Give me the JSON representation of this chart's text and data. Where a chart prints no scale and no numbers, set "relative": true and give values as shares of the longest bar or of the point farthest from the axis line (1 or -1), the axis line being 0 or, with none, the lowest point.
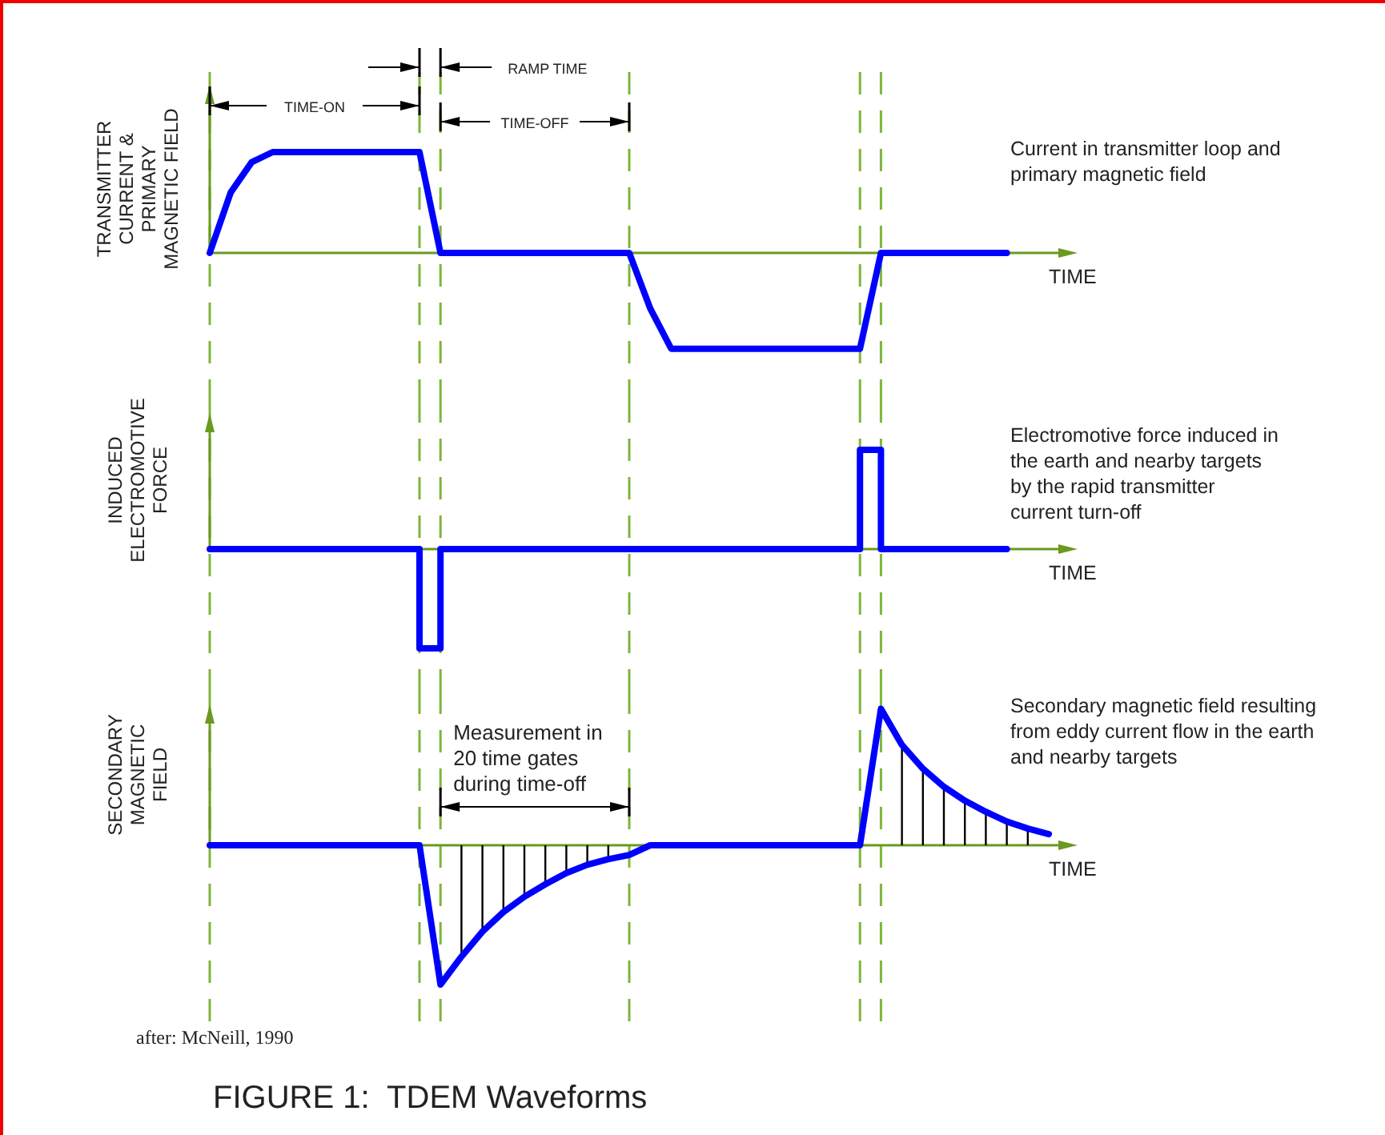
{
  "chart_data": [
    {
      "type": "line",
      "ylabel": "TRANSMITTER\nCURRENT &\nPRIMARY\nMAGNETIC FIELD",
      "xlabel": "TIME",
      "relative": true,
      "grid": "x",
      "ref_lines": [
        {
          "axis": "y",
          "value": 0,
          "color": "#6a9a1f"
        }
      ],
      "categories": [
        null,
        null,
        null,
        null,
        null,
        null,
        null,
        null,
        null,
        null,
        null,
        null,
        null,
        null,
        null,
        null,
        null,
        null,
        null,
        null,
        null,
        null,
        null,
        null,
        null,
        null,
        null,
        null,
        null,
        null,
        null,
        null,
        null,
        null,
        null,
        null,
        null,
        null,
        null,
        null,
        null
      ],
      "series": [
        {
          "color": "#0000ff",
          "values": [
            0,
            0.6,
            0.9,
            1,
            1,
            1,
            1,
            1,
            1,
            1,
            1,
            0,
            0,
            0,
            0,
            0,
            0,
            0,
            0,
            0,
            0,
            -0.55,
            -0.95,
            -0.95,
            -0.95,
            -0.95,
            -0.95,
            -0.95,
            -0.95,
            -0.95,
            -0.95,
            -0.95,
            0,
            0,
            0,
            0,
            0,
            0,
            0,
            null,
            null
          ]
        }
      ],
      "annotations": [
        "TIME-ON",
        "RAMP TIME",
        "TIME-OFF",
        "Current in transmitter loop and\nprimary magnetic field"
      ]
    },
    {
      "type": "step",
      "ylabel": "INDUCED\nELECTROMOTIVE\nFORCE",
      "xlabel": "TIME",
      "relative": true,
      "grid": "x",
      "ref_lines": [
        {
          "axis": "y",
          "value": 0,
          "color": "#6a9a1f"
        }
      ],
      "categories": [
        null,
        null,
        null,
        null,
        null,
        null,
        null,
        null,
        null,
        null,
        null,
        null,
        null,
        null,
        null,
        null,
        null,
        null,
        null,
        null,
        null,
        null,
        null,
        null,
        null,
        null,
        null,
        null,
        null,
        null,
        null,
        null,
        null,
        null,
        null,
        null,
        null,
        null,
        null,
        null,
        null
      ],
      "series": [
        {
          "color": "#0000ff",
          "values": [
            0,
            0,
            0,
            0,
            0,
            0,
            0,
            0,
            0,
            0,
            -1,
            0,
            0,
            0,
            0,
            0,
            0,
            0,
            0,
            0,
            0,
            0,
            0,
            0,
            0,
            0,
            0,
            0,
            0,
            0,
            0,
            1,
            0,
            0,
            0,
            0,
            0,
            0,
            0,
            null,
            null
          ]
        }
      ],
      "annotations": [
        "Electromotive force induced in\nthe earth and nearby targets\nby the rapid transmitter\ncurrent turn-off"
      ]
    },
    {
      "type": "line",
      "ylabel": "SECONDARY\nMAGNETIC\nFIELD",
      "xlabel": "TIME",
      "relative": true,
      "grid": "x",
      "ref_lines": [
        {
          "axis": "y",
          "value": 0,
          "color": "#6a9a1f"
        }
      ],
      "title": "FIGURE 1:  TDEM Waveforms",
      "categories": [
        null,
        null,
        null,
        null,
        null,
        null,
        null,
        null,
        null,
        null,
        null,
        null,
        null,
        null,
        null,
        null,
        null,
        null,
        null,
        null,
        null,
        null,
        null,
        null,
        null,
        null,
        null,
        null,
        null,
        null,
        null,
        null,
        null,
        null,
        null,
        null,
        null,
        null,
        null,
        null,
        null
      ],
      "series": [
        {
          "type": "bar",
          "color": "#000000",
          "values": [
            null,
            null,
            null,
            null,
            null,
            null,
            null,
            null,
            null,
            null,
            null,
            null,
            -0.8,
            -0.62,
            -0.48,
            -0.37,
            -0.28,
            -0.2,
            -0.14,
            -0.1,
            null,
            null,
            null,
            null,
            null,
            null,
            null,
            null,
            null,
            null,
            null,
            null,
            null,
            0.72,
            0.55,
            0.42,
            0.32,
            0.24,
            0.17,
            0.12,
            null
          ]
        },
        {
          "color": "#0000ff",
          "values": [
            0,
            0,
            0,
            0,
            0,
            0,
            0,
            0,
            0,
            0,
            0,
            -1,
            -0.8,
            -0.62,
            -0.48,
            -0.37,
            -0.28,
            -0.2,
            -0.14,
            -0.1,
            -0.07,
            0,
            0,
            0,
            0,
            0,
            0,
            0,
            0,
            0,
            0,
            0,
            0.98,
            0.72,
            0.55,
            0.42,
            0.32,
            0.24,
            0.17,
            0.12,
            0.08
          ]
        }
      ],
      "annotations": [
        "Measurement in\n20 time gates\nduring time-off",
        "Secondary magnetic field resulting\nfrom eddy current flow in the earth\nand nearby targets",
        "after: McNeill, 1990"
      ]
    }
  ]
}
